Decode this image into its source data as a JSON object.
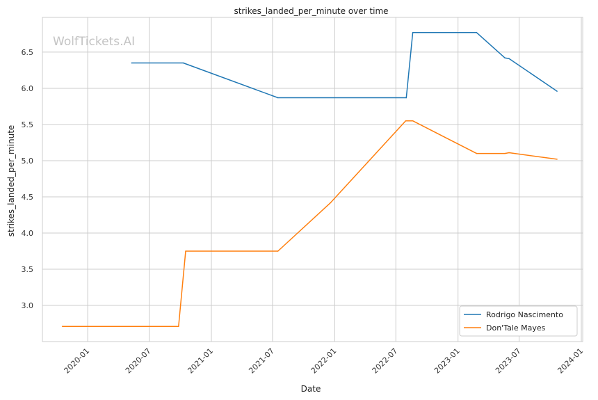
{
  "chart_data": {
    "type": "line",
    "title": "strikes_landed_per_minute over time",
    "xlabel": "Date",
    "ylabel": "strikes_landed_per_minute",
    "watermark": "WolfTickets.AI",
    "x_ticks": [
      "2020-01",
      "2020-07",
      "2021-01",
      "2021-07",
      "2022-01",
      "2022-07",
      "2023-01",
      "2023-07",
      "2024-01"
    ],
    "y_ticks": [
      "3.0",
      "3.5",
      "4.0",
      "4.5",
      "5.0",
      "5.5",
      "6.0",
      "6.5"
    ],
    "xlim": [
      "2019-08-20",
      "2024-01-05"
    ],
    "ylim": [
      2.5,
      6.98
    ],
    "grid": true,
    "legend_position": "bottom-right",
    "series": [
      {
        "name": "Rodrigo Nascimento",
        "color": "#1f77b4",
        "points": [
          [
            "2020-05-10",
            6.35
          ],
          [
            "2020-10-10",
            6.35
          ],
          [
            "2021-07-17",
            5.87
          ],
          [
            "2022-08-01",
            5.87
          ],
          [
            "2022-08-20",
            6.77
          ],
          [
            "2023-02-25",
            6.77
          ],
          [
            "2023-05-20",
            6.42
          ],
          [
            "2023-06-01",
            6.41
          ],
          [
            "2023-10-21",
            5.96
          ]
        ]
      },
      {
        "name": "Don'Tale Mayes",
        "color": "#ff7f0e",
        "points": [
          [
            "2019-10-18",
            2.71
          ],
          [
            "2020-09-26",
            2.71
          ],
          [
            "2020-10-17",
            3.75
          ],
          [
            "2021-07-17",
            3.75
          ],
          [
            "2021-12-20",
            4.42
          ],
          [
            "2022-07-30",
            5.55
          ],
          [
            "2022-08-20",
            5.55
          ],
          [
            "2023-02-25",
            5.1
          ],
          [
            "2023-05-20",
            5.1
          ],
          [
            "2023-06-01",
            5.11
          ],
          [
            "2023-10-21",
            5.02
          ]
        ]
      }
    ]
  }
}
